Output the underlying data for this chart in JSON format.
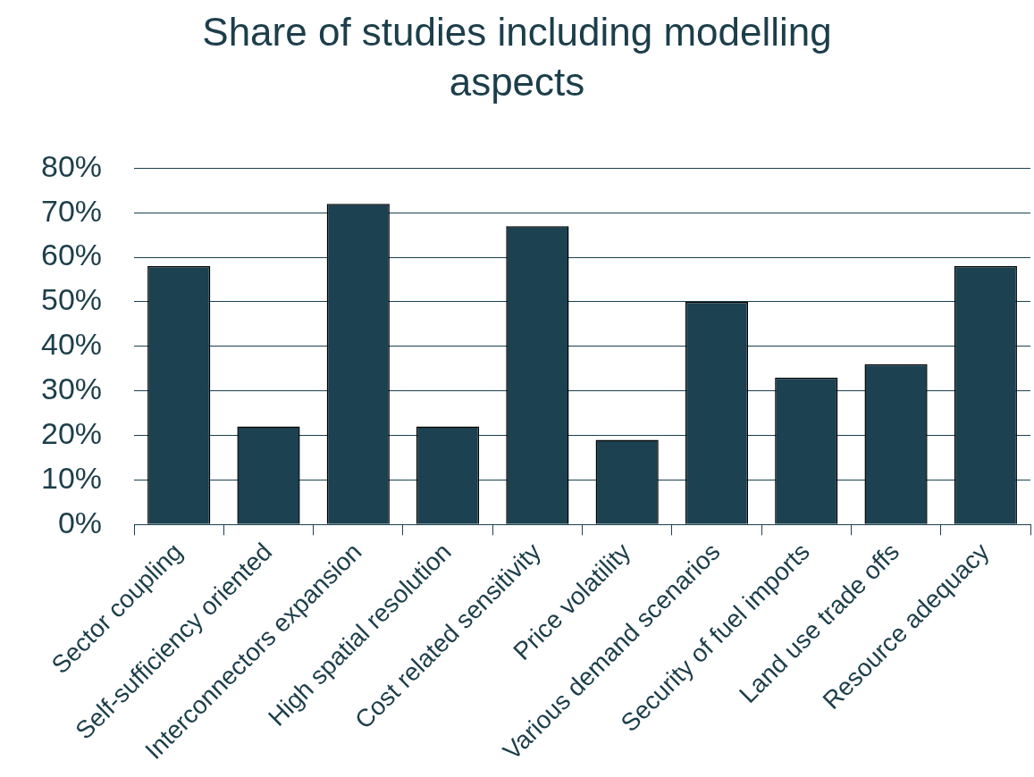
{
  "chart_data": {
    "type": "bar",
    "title": "Share of studies including modelling aspects",
    "categories": [
      "Sector coupling",
      "Self-sufficiency oriented",
      "Interconnectors expansion",
      "High spatial resolution",
      "Cost related sensitivity",
      "Price volatility",
      "Various demand scenarios",
      "Security of fuel imports",
      "Land use trade offs",
      "Resource adequacy"
    ],
    "values": [
      58,
      22,
      72,
      22,
      67,
      19,
      50,
      33,
      36,
      58
    ],
    "color": "#1c4150",
    "ylim": [
      0,
      80
    ],
    "yticks": [
      {
        "value": 0,
        "label": "0%"
      },
      {
        "value": 10,
        "label": "10%"
      },
      {
        "value": 20,
        "label": "20%"
      },
      {
        "value": 30,
        "label": "30%"
      },
      {
        "value": 40,
        "label": "40%"
      },
      {
        "value": 50,
        "label": "50%"
      },
      {
        "value": 60,
        "label": "60%"
      },
      {
        "value": 70,
        "label": "70%"
      },
      {
        "value": 80,
        "label": "80%"
      }
    ],
    "grid": "y",
    "legend": false
  }
}
